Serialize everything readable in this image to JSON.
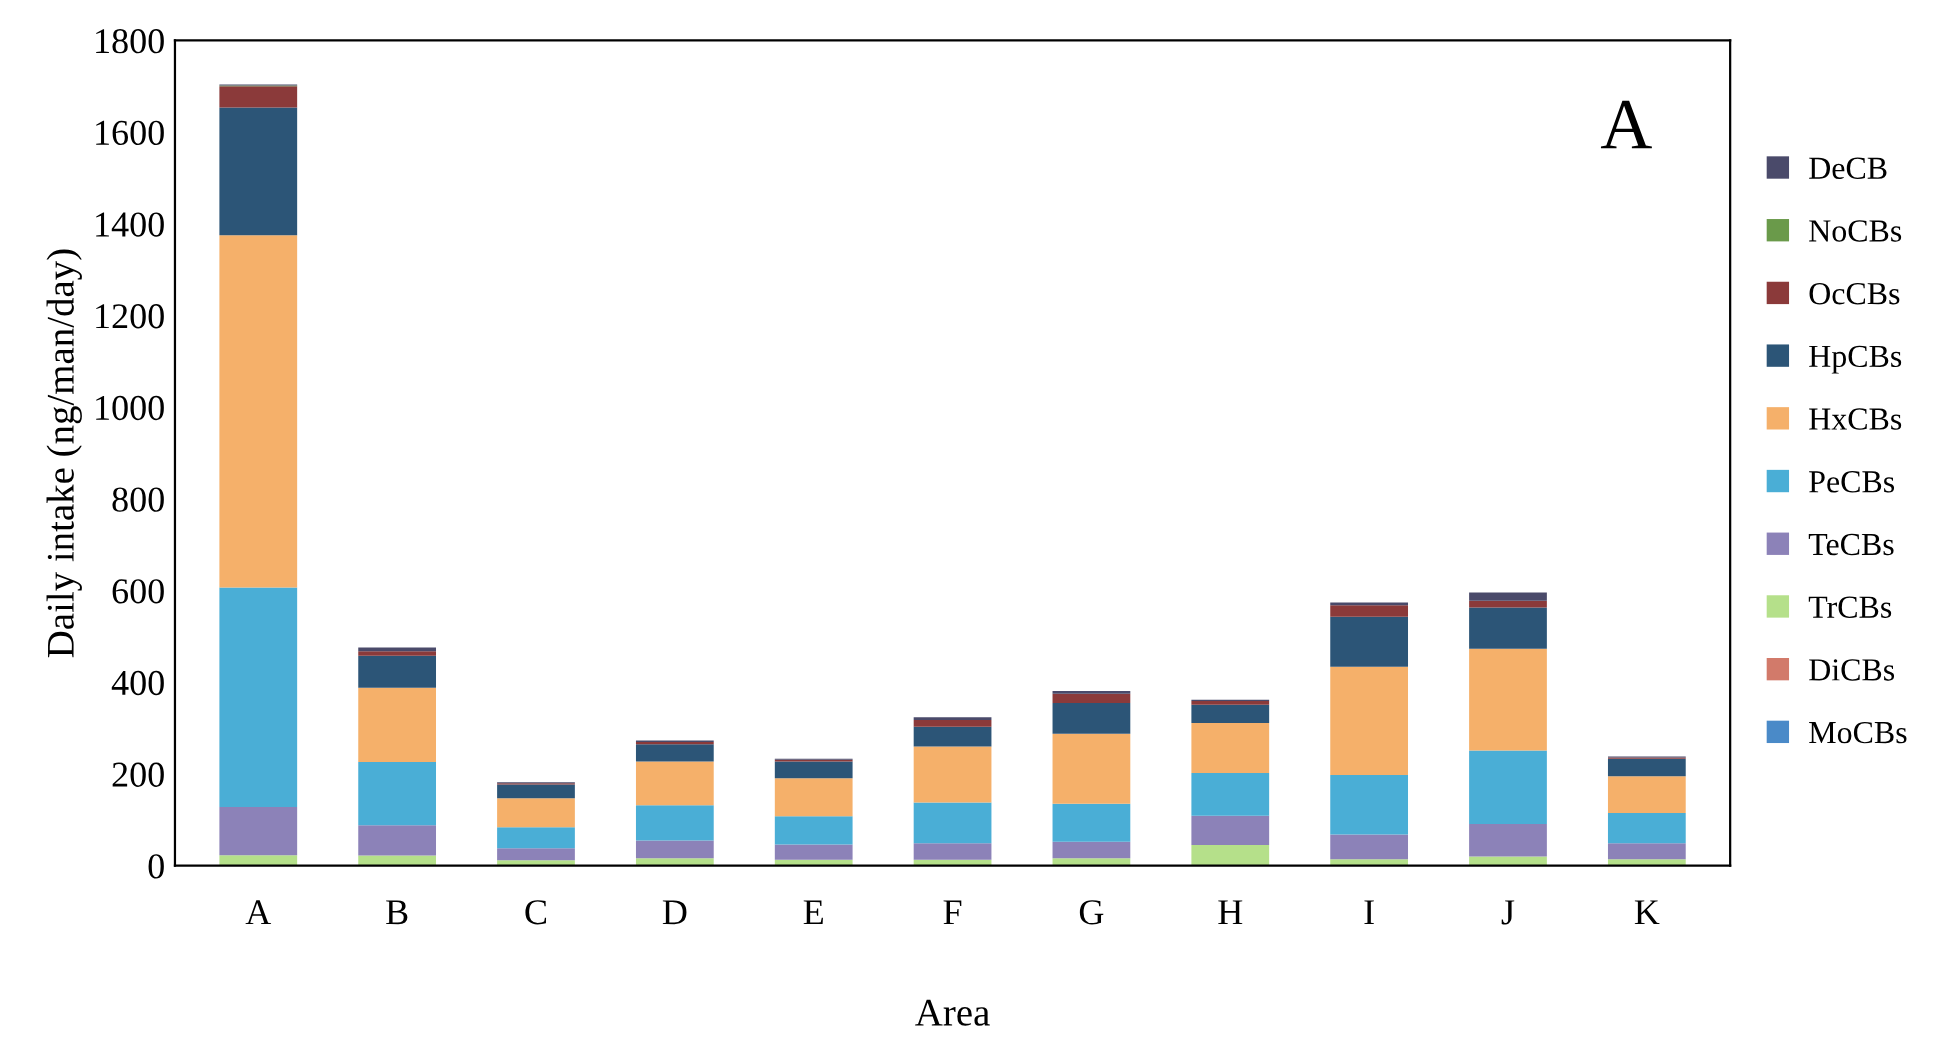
{
  "chart_data": {
    "type": "bar",
    "stacked": true,
    "xlabel": "Area",
    "ylabel": "Daily intake (ng/man/day)",
    "categories": [
      "A",
      "B",
      "C",
      "D",
      "E",
      "F",
      "G",
      "H",
      "I",
      "J",
      "K"
    ],
    "series": [
      {
        "name": "MoCBs",
        "color": "#4a8ac8",
        "values": [
          0,
          0,
          0,
          0,
          0,
          0,
          0,
          0,
          0,
          0,
          0
        ]
      },
      {
        "name": "DiCBs",
        "color": "#d27a6a",
        "values": [
          0,
          0,
          0,
          0,
          0,
          0,
          0,
          0,
          0,
          0,
          0
        ]
      },
      {
        "name": "TrCBs",
        "color": "#b5e08a",
        "values": [
          23,
          22,
          12,
          16,
          13,
          13,
          16,
          45,
          14,
          20,
          14
        ]
      },
      {
        "name": "TeCBs",
        "color": "#8c82b8",
        "values": [
          105,
          66,
          26,
          39,
          33,
          36,
          36,
          64,
          54,
          71,
          35
        ]
      },
      {
        "name": "PeCBs",
        "color": "#4aaed6",
        "values": [
          479,
          138,
          46,
          77,
          62,
          89,
          83,
          93,
          130,
          160,
          66
        ]
      },
      {
        "name": "HxCBs",
        "color": "#f5b06a",
        "values": [
          768,
          162,
          63,
          95,
          83,
          122,
          153,
          109,
          236,
          222,
          80
        ]
      },
      {
        "name": "HpCBs",
        "color": "#2c5577",
        "values": [
          279,
          70,
          30,
          38,
          36,
          43,
          67,
          40,
          109,
          90,
          38
        ]
      },
      {
        "name": "OcCBs",
        "color": "#8b3a3a",
        "values": [
          46,
          10,
          3,
          5,
          4,
          15,
          20,
          8,
          25,
          15,
          3
        ]
      },
      {
        "name": "NoCBs",
        "color": "#6a9a4a",
        "values": [
          2,
          0,
          0,
          0,
          0,
          0,
          0,
          0,
          0,
          0,
          0
        ]
      },
      {
        "name": "DeCB",
        "color": "#4a4a6a",
        "values": [
          2,
          8,
          2,
          3,
          2,
          6,
          6,
          3,
          6,
          18,
          2
        ]
      }
    ],
    "ylim": [
      0,
      1800
    ],
    "yticks": [
      0,
      200,
      400,
      600,
      800,
      1000,
      1200,
      1400,
      1600,
      1800
    ],
    "grid": false,
    "legend": "right",
    "annotations": [
      "A"
    ]
  }
}
